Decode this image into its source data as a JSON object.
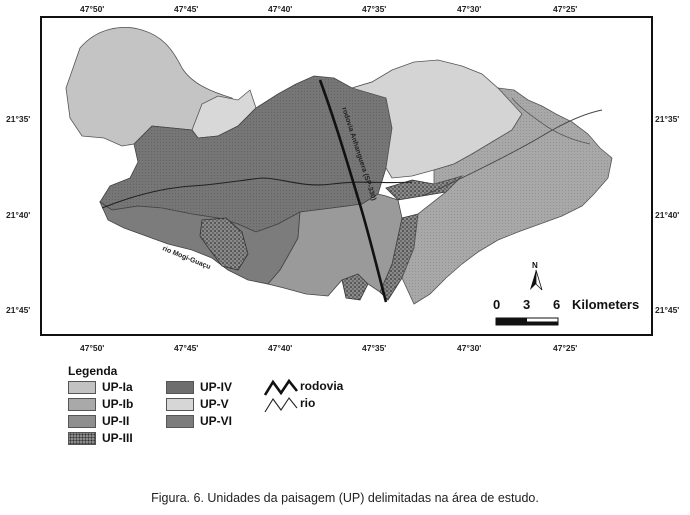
{
  "coords": {
    "top": [
      "47°50'",
      "47°45'",
      "47°40'",
      "47°35'",
      "47°30'",
      "47°25'"
    ],
    "bottom": [
      "47°50'",
      "47°45'",
      "47°40'",
      "47°35'",
      "47°30'",
      "47°25'"
    ],
    "left": [
      "21°35'",
      "21°40'",
      "21°45'"
    ],
    "right": [
      "21°35'",
      "21°40'",
      "21°45'"
    ]
  },
  "map_labels": {
    "road": "rodovia Anhanguera (SP-330)",
    "river": "rio Mogi-Guaçu"
  },
  "scale": {
    "n0": "0",
    "n1": "3",
    "n2": "6",
    "unit": "Kilometers",
    "north": "N"
  },
  "legend": {
    "title": "Legenda",
    "items": [
      {
        "label": "UP-Ia",
        "color": "#c2c2c2",
        "pattern": "light"
      },
      {
        "label": "UP-Ib",
        "color": "#a9a9a9",
        "pattern": "medium"
      },
      {
        "label": "UP-II",
        "color": "#8f8f8f",
        "pattern": "medium"
      },
      {
        "label": "UP-III",
        "color": "#6a6a6a",
        "pattern": "dots"
      },
      {
        "label": "UP-IV",
        "color": "#6e6e6e",
        "pattern": "dark"
      },
      {
        "label": "UP-V",
        "color": "#d6d6d6",
        "pattern": "light"
      },
      {
        "label": "UP-VI",
        "color": "#7c7c7c",
        "pattern": "dark"
      }
    ],
    "lines": [
      {
        "label": "rodovia",
        "icon": "road-line-icon"
      },
      {
        "label": "rio",
        "icon": "river-line-icon"
      }
    ]
  },
  "caption": "Figura. 6. Unidades da paisagem (UP) delimitadas na área de estudo."
}
